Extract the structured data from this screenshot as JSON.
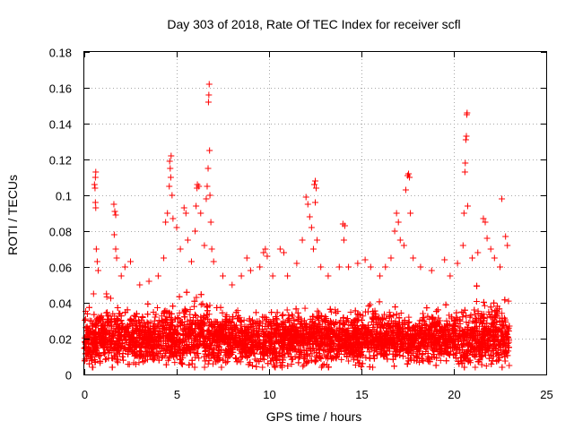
{
  "chart_data": {
    "type": "scatter",
    "title": "Day 303 of 2018, Rate Of TEC Index for receiver scfl",
    "xlabel": "GPS time / hours",
    "ylabel": "ROTI / TECUs",
    "xlim": [
      0,
      25
    ],
    "ylim": [
      0,
      0.18
    ],
    "x_ticks": [
      0,
      5,
      10,
      15,
      20,
      25
    ],
    "x_tick_labels": [
      "0",
      "5",
      "10",
      "15",
      "20",
      "25"
    ],
    "y_ticks": [
      0,
      0.02,
      0.04,
      0.06,
      0.08,
      0.1,
      0.12,
      0.14,
      0.16,
      0.18
    ],
    "y_tick_labels": [
      "0",
      "0.02",
      "0.04",
      "0.06",
      "0.08",
      "0.1",
      "0.12",
      "0.14",
      "0.16",
      "0.18"
    ],
    "grid": true,
    "marker": "+",
    "color": "#ff0000",
    "series": [
      {
        "name": "ROTI",
        "points": [
          [
            0.3,
            0.03
          ],
          [
            0.5,
            0.045
          ],
          [
            0.55,
            0.106
          ],
          [
            0.6,
            0.11
          ],
          [
            0.62,
            0.113
          ],
          [
            0.58,
            0.104
          ],
          [
            0.6,
            0.096
          ],
          [
            0.62,
            0.093
          ],
          [
            0.65,
            0.07
          ],
          [
            0.7,
            0.063
          ],
          [
            0.75,
            0.058
          ],
          [
            1.2,
            0.045
          ],
          [
            1.6,
            0.095
          ],
          [
            1.65,
            0.091
          ],
          [
            1.7,
            0.089
          ],
          [
            1.62,
            0.078
          ],
          [
            1.7,
            0.07
          ],
          [
            1.75,
            0.065
          ],
          [
            2.0,
            0.055
          ],
          [
            2.2,
            0.06
          ],
          [
            2.5,
            0.063
          ],
          [
            3.0,
            0.05
          ],
          [
            3.5,
            0.052
          ],
          [
            4.0,
            0.055
          ],
          [
            4.3,
            0.065
          ],
          [
            4.4,
            0.085
          ],
          [
            4.5,
            0.09
          ],
          [
            4.6,
            0.105
          ],
          [
            4.65,
            0.115
          ],
          [
            4.7,
            0.122
          ],
          [
            4.62,
            0.119
          ],
          [
            4.68,
            0.11
          ],
          [
            4.75,
            0.1
          ],
          [
            4.8,
            0.087
          ],
          [
            5.0,
            0.082
          ],
          [
            5.2,
            0.07
          ],
          [
            5.4,
            0.093
          ],
          [
            5.5,
            0.09
          ],
          [
            5.6,
            0.075
          ],
          [
            5.8,
            0.063
          ],
          [
            6.0,
            0.08
          ],
          [
            6.05,
            0.094
          ],
          [
            6.1,
            0.104
          ],
          [
            6.12,
            0.106
          ],
          [
            6.2,
            0.105
          ],
          [
            6.3,
            0.09
          ],
          [
            6.5,
            0.072
          ],
          [
            6.6,
            0.098
          ],
          [
            6.65,
            0.105
          ],
          [
            6.7,
            0.115
          ],
          [
            6.72,
            0.152
          ],
          [
            6.74,
            0.156
          ],
          [
            6.76,
            0.162
          ],
          [
            6.78,
            0.125
          ],
          [
            6.8,
            0.1
          ],
          [
            6.85,
            0.085
          ],
          [
            6.9,
            0.07
          ],
          [
            7.0,
            0.063
          ],
          [
            7.5,
            0.055
          ],
          [
            8.0,
            0.05
          ],
          [
            8.5,
            0.055
          ],
          [
            8.8,
            0.065
          ],
          [
            9.0,
            0.058
          ],
          [
            9.5,
            0.06
          ],
          [
            9.7,
            0.068
          ],
          [
            9.8,
            0.07
          ],
          [
            9.9,
            0.066
          ],
          [
            10.2,
            0.055
          ],
          [
            10.6,
            0.07
          ],
          [
            10.8,
            0.068
          ],
          [
            11.0,
            0.055
          ],
          [
            11.5,
            0.062
          ],
          [
            11.8,
            0.075
          ],
          [
            12.0,
            0.099
          ],
          [
            12.1,
            0.095
          ],
          [
            12.2,
            0.088
          ],
          [
            12.3,
            0.082
          ],
          [
            12.4,
            0.07
          ],
          [
            12.45,
            0.106
          ],
          [
            12.5,
            0.108
          ],
          [
            12.55,
            0.104
          ],
          [
            12.5,
            0.096
          ],
          [
            12.6,
            0.075
          ],
          [
            12.8,
            0.06
          ],
          [
            13.2,
            0.055
          ],
          [
            13.8,
            0.06
          ],
          [
            14.0,
            0.084
          ],
          [
            14.1,
            0.083
          ],
          [
            14.05,
            0.075
          ],
          [
            14.3,
            0.06
          ],
          [
            14.8,
            0.062
          ],
          [
            15.2,
            0.064
          ],
          [
            15.5,
            0.06
          ],
          [
            16.0,
            0.055
          ],
          [
            16.3,
            0.06
          ],
          [
            16.6,
            0.065
          ],
          [
            16.8,
            0.08
          ],
          [
            16.9,
            0.09
          ],
          [
            17.0,
            0.085
          ],
          [
            17.1,
            0.075
          ],
          [
            17.3,
            0.072
          ],
          [
            17.4,
            0.103
          ],
          [
            17.5,
            0.111
          ],
          [
            17.55,
            0.112
          ],
          [
            17.6,
            0.11
          ],
          [
            17.65,
            0.09
          ],
          [
            17.8,
            0.065
          ],
          [
            18.2,
            0.06
          ],
          [
            18.8,
            0.058
          ],
          [
            19.5,
            0.064
          ],
          [
            19.8,
            0.055
          ],
          [
            20.2,
            0.062
          ],
          [
            20.5,
            0.072
          ],
          [
            20.55,
            0.09
          ],
          [
            20.6,
            0.113
          ],
          [
            20.62,
            0.118
          ],
          [
            20.65,
            0.131
          ],
          [
            20.7,
            0.145
          ],
          [
            20.72,
            0.146
          ],
          [
            20.68,
            0.133
          ],
          [
            20.75,
            0.094
          ],
          [
            21.0,
            0.065
          ],
          [
            21.3,
            0.068
          ],
          [
            21.6,
            0.087
          ],
          [
            21.7,
            0.085
          ],
          [
            21.8,
            0.076
          ],
          [
            22.0,
            0.07
          ],
          [
            22.2,
            0.065
          ],
          [
            22.5,
            0.06
          ],
          [
            22.6,
            0.098
          ],
          [
            22.8,
            0.077
          ],
          [
            22.9,
            0.072
          ],
          [
            23.0,
            0.005
          ]
        ]
      }
    ],
    "band": {
      "x_range": [
        0,
        23.0
      ],
      "typical_range": [
        0.005,
        0.045
      ],
      "median": 0.02,
      "peak_regions_hours": [
        [
          1.0,
          2.5
        ],
        [
          4.3,
          7.2
        ],
        [
          15.0,
          16.2
        ],
        [
          21.0,
          23.0
        ]
      ]
    }
  }
}
